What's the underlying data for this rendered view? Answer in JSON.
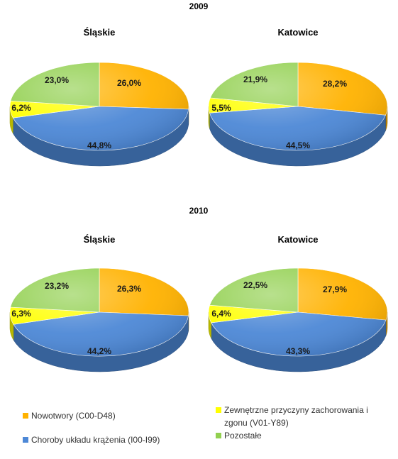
{
  "colors": {
    "nowotwory": "#ffb200",
    "krazenie": "#4d88d6",
    "zewnetrzne": "#ffff00",
    "pozostale": "#92d050"
  },
  "chart_data": {
    "type": "pie",
    "legend": [
      {
        "key": "nowotwory",
        "label": "Nowotwory  (C00-D48)"
      },
      {
        "key": "zewnetrzne",
        "label": "Zewnętrzne przyczyny zachorowania i zgonu (V01-Y89)"
      },
      {
        "key": "krazenie",
        "label": "Choroby układu krążenia  (I00-I99)"
      },
      {
        "key": "pozostale",
        "label": "Pozostałe"
      }
    ],
    "years": [
      {
        "year": "2009",
        "pies": [
          {
            "title": "Śląskie",
            "slices": [
              {
                "key": "nowotwory",
                "value": 26.0,
                "label": "26,0%"
              },
              {
                "key": "krazenie",
                "value": 44.8,
                "label": "44,8%"
              },
              {
                "key": "zewnetrzne",
                "value": 6.2,
                "label": "6,2%"
              },
              {
                "key": "pozostale",
                "value": 23.0,
                "label": "23,0%"
              }
            ]
          },
          {
            "title": "Katowice",
            "slices": [
              {
                "key": "nowotwory",
                "value": 28.2,
                "label": "28,2%"
              },
              {
                "key": "krazenie",
                "value": 44.5,
                "label": "44,5%"
              },
              {
                "key": "zewnetrzne",
                "value": 5.5,
                "label": "5,5%"
              },
              {
                "key": "pozostale",
                "value": 21.9,
                "label": "21,9%"
              }
            ]
          }
        ]
      },
      {
        "year": "2010",
        "pies": [
          {
            "title": "Śląskie",
            "slices": [
              {
                "key": "nowotwory",
                "value": 26.3,
                "label": "26,3%"
              },
              {
                "key": "krazenie",
                "value": 44.2,
                "label": "44,2%"
              },
              {
                "key": "zewnetrzne",
                "value": 6.3,
                "label": "6,3%"
              },
              {
                "key": "pozostale",
                "value": 23.2,
                "label": "23,2%"
              }
            ]
          },
          {
            "title": "Katowice",
            "slices": [
              {
                "key": "nowotwory",
                "value": 27.9,
                "label": "27,9%"
              },
              {
                "key": "krazenie",
                "value": 43.3,
                "label": "43,3%"
              },
              {
                "key": "zewnetrzne",
                "value": 6.4,
                "label": "6,4%"
              },
              {
                "key": "pozostale",
                "value": 22.5,
                "label": "22,5%"
              }
            ]
          }
        ]
      }
    ]
  }
}
